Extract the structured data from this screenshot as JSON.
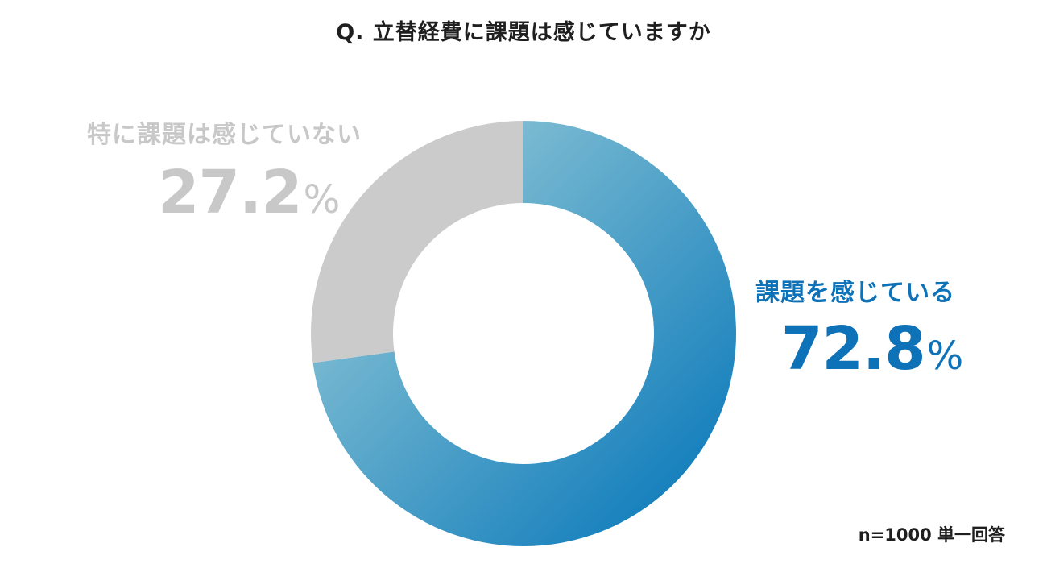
{
  "colors": {
    "main_label": "#0d72b7",
    "other_label": "#c8c8c8",
    "main_gradient_light": "#a3d2da",
    "main_gradient_dark": "#0073b8",
    "other_segment": "#cbcbcb"
  },
  "chart_data": {
    "type": "pie",
    "style": "donut",
    "title": "Q. 立替経費に課題は感じていますか",
    "slices": [
      {
        "label": "課題を感じている",
        "value": 72.8,
        "display": "72.8",
        "unit": "%"
      },
      {
        "label": "特に課題は感じていない",
        "value": 27.2,
        "display": "27.2",
        "unit": "%"
      }
    ],
    "note": "n=1000 単一回答"
  }
}
